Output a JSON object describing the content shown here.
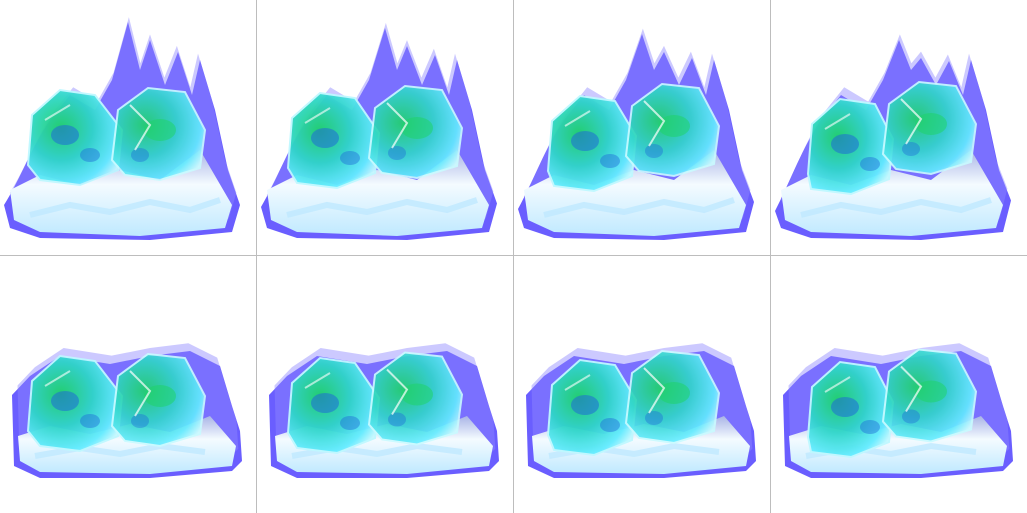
{
  "sheet": {
    "columns": 4,
    "rows": 2,
    "frames": [
      {
        "id": "frame-1",
        "variant": "flare-tall"
      },
      {
        "id": "frame-2",
        "variant": "flare-tall"
      },
      {
        "id": "frame-3",
        "variant": "flare-tall"
      },
      {
        "id": "frame-4",
        "variant": "flare-tall"
      },
      {
        "id": "frame-5",
        "variant": "flare-low"
      },
      {
        "id": "frame-6",
        "variant": "flare-low"
      },
      {
        "id": "frame-7",
        "variant": "flare-low"
      },
      {
        "id": "frame-8",
        "variant": "flare-low"
      }
    ],
    "colors": {
      "background": "#ffffff",
      "grid": "#bdbdbd",
      "aura": "#5a4cff",
      "aura_light": "#8f87ff",
      "crystal_green": "#1fd36a",
      "crystal_teal": "#2fd6c8",
      "crystal_cyan": "#63ecff",
      "crystal_blue": "#1f6ad8",
      "base_white": "#f4fbff",
      "base_ice": "#bfe9ff",
      "base_shadow": "#a9b4e6"
    }
  }
}
